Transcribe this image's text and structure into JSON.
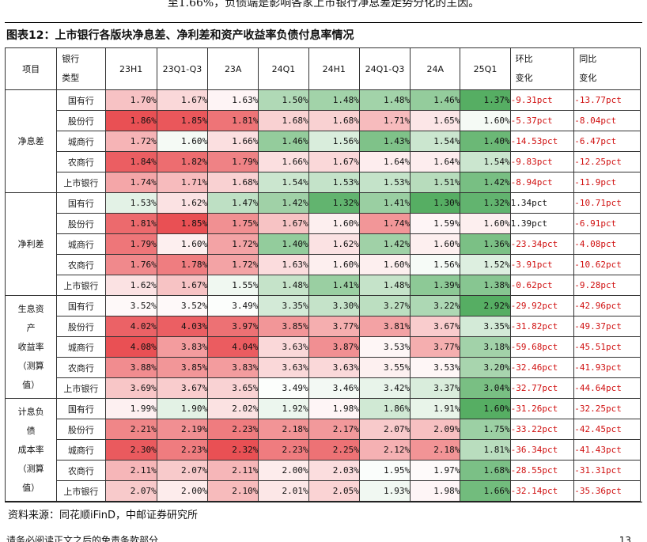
{
  "top_text": "至1.66%，负债端是影响各家上市银行净息差走势分化的主因。",
  "figure_title": "图表12：上市银行各版块净息差、净利差和资产收益率负债付息率情况",
  "table": {
    "header": {
      "item": "项目",
      "bank_type_line1": "银行",
      "bank_type_line2": "类型",
      "periods": [
        "23H1",
        "23Q1-Q3",
        "23A",
        "24Q1",
        "24H1",
        "24Q1-Q3",
        "24A",
        "25Q1"
      ],
      "qoq_line1": "环比",
      "qoq_line2": "变化",
      "yoy_line1": "同比",
      "yoy_line2": "变化"
    },
    "groups": [
      {
        "metric_lines": [
          "净息差"
        ],
        "rows": [
          {
            "bank": "国有行",
            "values": [
              "1.70%",
              "1.67%",
              "1.63%",
              "1.50%",
              "1.48%",
              "1.48%",
              "1.46%",
              "1.37%"
            ],
            "qoq": "-9.31pct",
            "yoy": "-13.77pct"
          },
          {
            "bank": "股份行",
            "values": [
              "1.86%",
              "1.85%",
              "1.81%",
              "1.68%",
              "1.68%",
              "1.71%",
              "1.65%",
              "1.60%"
            ],
            "qoq": "-5.37pct",
            "yoy": "-8.04pct"
          },
          {
            "bank": "城商行",
            "values": [
              "1.72%",
              "1.60%",
              "1.66%",
              "1.46%",
              "1.56%",
              "1.43%",
              "1.54%",
              "1.40%"
            ],
            "qoq": "-14.53pct",
            "yoy": "-6.47pct"
          },
          {
            "bank": "农商行",
            "values": [
              "1.84%",
              "1.82%",
              "1.79%",
              "1.66%",
              "1.67%",
              "1.64%",
              "1.64%",
              "1.54%"
            ],
            "qoq": "-9.83pct",
            "yoy": "-12.25pct"
          },
          {
            "bank": "上市银行",
            "values": [
              "1.74%",
              "1.71%",
              "1.68%",
              "1.54%",
              "1.53%",
              "1.53%",
              "1.51%",
              "1.42%"
            ],
            "qoq": "-8.94pct",
            "yoy": "-11.9pct"
          }
        ]
      },
      {
        "metric_lines": [
          "净利差"
        ],
        "rows": [
          {
            "bank": "国有行",
            "values": [
              "1.53%",
              "1.62%",
              "1.47%",
              "1.42%",
              "1.32%",
              "1.41%",
              "1.30%",
              "1.32%"
            ],
            "qoq": "1.34pct",
            "yoy": "-10.71pct"
          },
          {
            "bank": "股份行",
            "values": [
              "1.81%",
              "1.85%",
              "1.75%",
              "1.67%",
              "1.60%",
              "1.74%",
              "1.59%",
              "1.60%"
            ],
            "qoq": "1.39pct",
            "yoy": "-6.91pct"
          },
          {
            "bank": "城商行",
            "values": [
              "1.79%",
              "1.60%",
              "1.72%",
              "1.40%",
              "1.62%",
              "1.42%",
              "1.60%",
              "1.36%"
            ],
            "qoq": "-23.34pct",
            "yoy": "-4.08pct"
          },
          {
            "bank": "农商行",
            "values": [
              "1.76%",
              "1.78%",
              "1.72%",
              "1.63%",
              "1.60%",
              "1.60%",
              "1.56%",
              "1.52%"
            ],
            "qoq": "-3.91pct",
            "yoy": "-10.62pct"
          },
          {
            "bank": "上市银行",
            "values": [
              "1.62%",
              "1.67%",
              "1.55%",
              "1.48%",
              "1.41%",
              "1.48%",
              "1.39%",
              "1.38%"
            ],
            "qoq": "-0.62pct",
            "yoy": "-9.28pct"
          }
        ]
      },
      {
        "metric_lines": [
          "生息资",
          "产",
          "收益率",
          "（测算",
          "值）"
        ],
        "rows": [
          {
            "bank": "国有行",
            "values": [
              "3.52%",
              "3.52%",
              "3.49%",
              "3.35%",
              "3.30%",
              "3.27%",
              "3.22%",
              "2.92%"
            ],
            "qoq": "-29.92pct",
            "yoy": "-42.96pct"
          },
          {
            "bank": "股份行",
            "values": [
              "4.02%",
              "4.03%",
              "3.97%",
              "3.85%",
              "3.77%",
              "3.81%",
              "3.67%",
              "3.35%"
            ],
            "qoq": "-31.82pct",
            "yoy": "-49.37pct"
          },
          {
            "bank": "城商行",
            "values": [
              "4.08%",
              "3.83%",
              "4.04%",
              "3.63%",
              "3.87%",
              "3.53%",
              "3.77%",
              "3.18%"
            ],
            "qoq": "-59.68pct",
            "yoy": "-45.51pct"
          },
          {
            "bank": "农商行",
            "values": [
              "3.88%",
              "3.85%",
              "3.83%",
              "3.63%",
              "3.63%",
              "3.55%",
              "3.53%",
              "3.20%"
            ],
            "qoq": "-32.46pct",
            "yoy": "-41.93pct"
          },
          {
            "bank": "上市银行",
            "values": [
              "3.69%",
              "3.67%",
              "3.65%",
              "3.49%",
              "3.46%",
              "3.42%",
              "3.37%",
              "3.04%"
            ],
            "qoq": "-32.77pct",
            "yoy": "-44.64pct"
          }
        ]
      },
      {
        "metric_lines": [
          "计息负",
          "债",
          "成本率",
          "（测算",
          "值）"
        ],
        "rows": [
          {
            "bank": "国有行",
            "values": [
              "1.99%",
              "1.90%",
              "2.02%",
              "1.92%",
              "1.98%",
              "1.86%",
              "1.91%",
              "1.60%"
            ],
            "qoq": "-31.26pct",
            "yoy": "-32.25pct"
          },
          {
            "bank": "股份行",
            "values": [
              "2.21%",
              "2.19%",
              "2.23%",
              "2.18%",
              "2.17%",
              "2.07%",
              "2.09%",
              "1.75%"
            ],
            "qoq": "-33.22pct",
            "yoy": "-42.45pct"
          },
          {
            "bank": "城商行",
            "values": [
              "2.30%",
              "2.23%",
              "2.32%",
              "2.23%",
              "2.25%",
              "2.12%",
              "2.18%",
              "1.81%"
            ],
            "qoq": "-36.34pct",
            "yoy": "-41.43pct"
          },
          {
            "bank": "农商行",
            "values": [
              "2.11%",
              "2.07%",
              "2.11%",
              "2.00%",
              "2.03%",
              "1.95%",
              "1.97%",
              "1.68%"
            ],
            "qoq": "-28.55pct",
            "yoy": "-31.31pct"
          },
          {
            "bank": "上市银行",
            "values": [
              "2.07%",
              "2.00%",
              "2.10%",
              "2.01%",
              "2.05%",
              "1.93%",
              "1.98%",
              "1.66%"
            ],
            "qoq": "-32.14pct",
            "yoy": "-35.36pct"
          }
        ]
      }
    ],
    "colors": {
      "high": "#e8474b",
      "mid": "#ffffff",
      "low": "#4daa5b",
      "negative_change": "#d01010"
    }
  },
  "source_note": "资料来源：同花顺iFinD，中邮证券研究所",
  "footer": {
    "disclaimer": "请务必阅读正文之后的免责条款部分",
    "page_number": "13"
  }
}
